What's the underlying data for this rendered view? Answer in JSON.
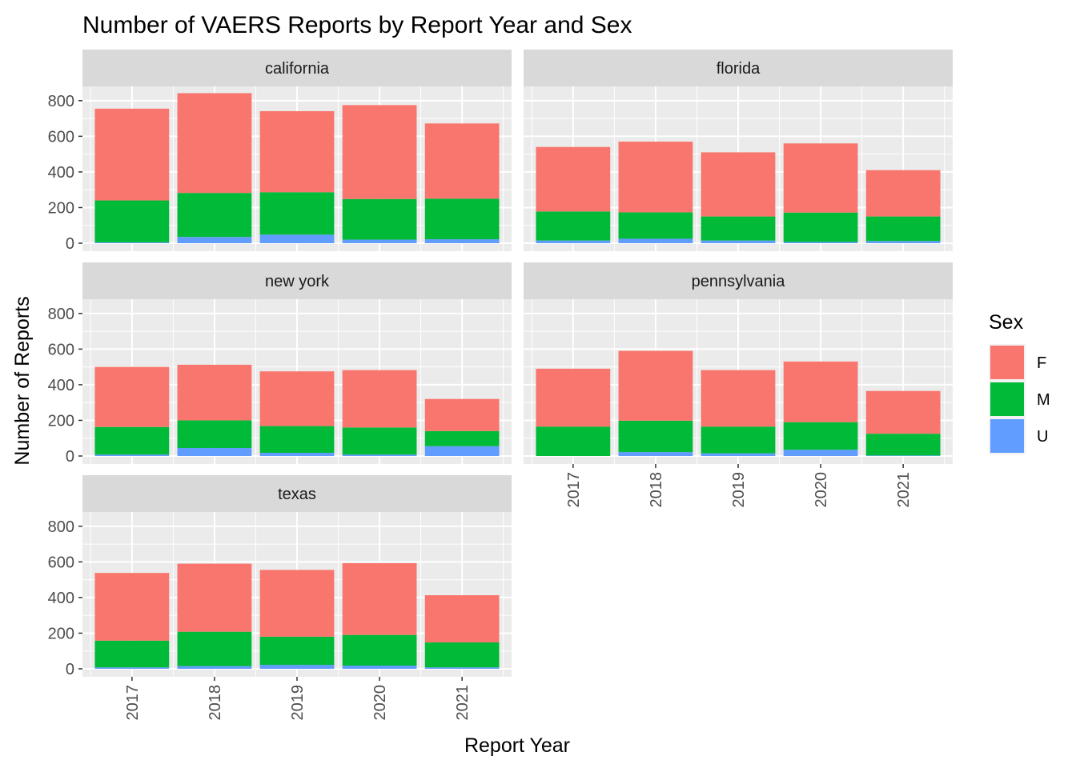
{
  "chart_data": {
    "type": "bar",
    "stacked": true,
    "faceted": true,
    "title": "Number of VAERS Reports by Report Year and Sex",
    "xlabel": "Report Year",
    "ylabel": "Number of Reports",
    "categories": [
      "2017",
      "2018",
      "2019",
      "2020",
      "2021"
    ],
    "y_ticks": [
      "0",
      "200",
      "400",
      "600",
      "800"
    ],
    "ylim": [
      0,
      880
    ],
    "grid": true,
    "legend": {
      "title": "Sex",
      "position": "right",
      "entries": [
        "F",
        "M",
        "U"
      ]
    },
    "colors": {
      "F": "#F8766D",
      "M": "#00BA38",
      "U": "#619CFF"
    },
    "panels": [
      {
        "name": "california",
        "series": [
          {
            "name": "U",
            "values": [
              5,
              35,
              48,
              20,
              22
            ]
          },
          {
            "name": "M",
            "values": [
              235,
              247,
              238,
              228,
              228
            ]
          },
          {
            "name": "F",
            "values": [
              515,
              560,
              455,
              527,
              422
            ]
          }
        ]
      },
      {
        "name": "florida",
        "series": [
          {
            "name": "U",
            "values": [
              15,
              25,
              15,
              7,
              12
            ]
          },
          {
            "name": "M",
            "values": [
              163,
              148,
              135,
              165,
              138
            ]
          },
          {
            "name": "F",
            "values": [
              362,
              397,
              360,
              388,
              260
            ]
          }
        ]
      },
      {
        "name": "new york",
        "series": [
          {
            "name": "U",
            "values": [
              8,
              45,
              18,
              8,
              55
            ]
          },
          {
            "name": "M",
            "values": [
              155,
              155,
              150,
              152,
              85
            ]
          },
          {
            "name": "F",
            "values": [
              337,
              312,
              307,
              322,
              180
            ]
          }
        ]
      },
      {
        "name": "pennsylvania",
        "series": [
          {
            "name": "U",
            "values": [
              0,
              22,
              15,
              35,
              3
            ]
          },
          {
            "name": "M",
            "values": [
              165,
              176,
              150,
              155,
              122
            ]
          },
          {
            "name": "F",
            "values": [
              325,
              392,
              317,
              340,
              240
            ]
          }
        ]
      },
      {
        "name": "texas",
        "series": [
          {
            "name": "U",
            "values": [
              8,
              15,
              22,
              18,
              8
            ]
          },
          {
            "name": "M",
            "values": [
              150,
              193,
              158,
              172,
              140
            ]
          },
          {
            "name": "F",
            "values": [
              380,
              382,
              375,
              403,
              265
            ]
          }
        ]
      }
    ]
  }
}
